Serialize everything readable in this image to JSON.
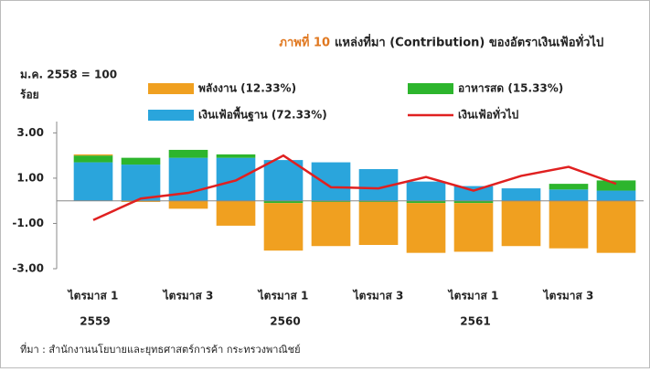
{
  "chart_data": {
    "type": "bar",
    "figure_label": "ภาพที่ 10",
    "title": "แหล่งที่มา (Contribution) ของอัตราเงินเฟ้อทั่วไป",
    "base_note": "ม.ค. 2558 = 100",
    "y_label": "ร้อย",
    "source": "ที่มา : สำนักงานนโยบายและยุทธศาสตร์การค้า กระทรวงพาณิชย์",
    "categories": [
      "ไตรมาส 1",
      null,
      "ไตรมาส 3",
      null,
      "ไตรมาส 1",
      null,
      "ไตรมาส 3",
      null,
      "ไตรมาส 1",
      null,
      "ไตรมาส 3",
      null
    ],
    "years": [
      "2559",
      null,
      null,
      null,
      "2560",
      null,
      null,
      null,
      "2561",
      null,
      null,
      null
    ],
    "series": [
      {
        "name": "เงินเฟ้อพื้นฐาน (72.33%)",
        "color": "#2aa5dc",
        "values": [
          1.7,
          1.6,
          1.9,
          1.9,
          1.8,
          1.7,
          1.4,
          0.85,
          0.65,
          0.55,
          0.5,
          0.45
        ]
      },
      {
        "name": "อาหารสด (15.33%)",
        "color": "#2db52d",
        "values": [
          0.3,
          0.3,
          0.35,
          0.15,
          -0.1,
          -0.05,
          -0.05,
          -0.1,
          -0.1,
          0,
          0.25,
          0.45
        ]
      },
      {
        "name": "พลังงาน (12.33%)",
        "color": "#f0a020",
        "values": [
          0.05,
          -0.05,
          -0.35,
          -1.1,
          -2.1,
          -1.95,
          -1.9,
          -2.2,
          -2.15,
          -2.0,
          -2.1,
          -2.3
        ]
      },
      {
        "name": "เงินเฟ้อทั่วไป",
        "color": "#e02020",
        "kind": "line",
        "values": [
          -0.85,
          0.1,
          0.35,
          0.9,
          2.0,
          0.6,
          0.55,
          1.05,
          0.45,
          1.1,
          1.5,
          0.75
        ]
      }
    ],
    "ylim": [
      -3,
      3.5
    ],
    "yticks": [
      {
        "value": 3,
        "label": "3.00"
      },
      {
        "value": 1,
        "label": "1.00"
      },
      {
        "value": -1,
        "label": "-1.00"
      },
      {
        "value": -3,
        "label": "-3.00"
      }
    ]
  }
}
